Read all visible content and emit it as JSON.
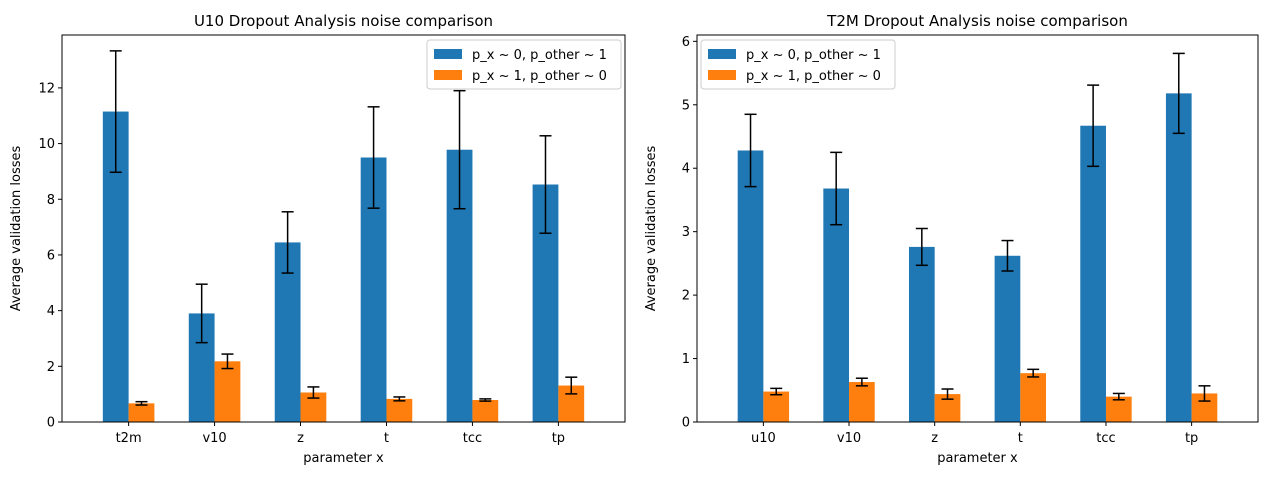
{
  "chart_data": [
    {
      "type": "bar",
      "title": "U10 Dropout Analysis noise comparison",
      "xlabel": "parameter x",
      "ylabel": "Average validation losses",
      "categories": [
        "t2m",
        "v10",
        "z",
        "t",
        "tcc",
        "tp"
      ],
      "ylim": [
        0,
        13.9
      ],
      "yticks": [
        0,
        2,
        4,
        6,
        8,
        10,
        12
      ],
      "legend_position": "upper right",
      "series": [
        {
          "name": "p_x ~ 0, p_other ~ 1",
          "color": "#1f77b4",
          "values": [
            11.15,
            3.9,
            6.45,
            9.5,
            9.78,
            8.53
          ],
          "errors": [
            2.18,
            1.05,
            1.1,
            1.82,
            2.12,
            1.75
          ]
        },
        {
          "name": "p_x ~ 1, p_other ~ 0",
          "color": "#ff7f0e",
          "values": [
            0.67,
            2.18,
            1.06,
            0.83,
            0.79,
            1.31
          ],
          "errors": [
            0.06,
            0.26,
            0.2,
            0.07,
            0.04,
            0.3
          ]
        }
      ]
    },
    {
      "type": "bar",
      "title": "T2M Dropout Analysis noise comparison",
      "xlabel": "parameter x",
      "ylabel": "Average validation losses",
      "categories": [
        "u10",
        "v10",
        "z",
        "t",
        "tcc",
        "tp"
      ],
      "ylim": [
        0,
        6.1
      ],
      "yticks": [
        0,
        1,
        2,
        3,
        4,
        5,
        6
      ],
      "legend_position": "upper left",
      "series": [
        {
          "name": "p_x ~ 0, p_other ~ 1",
          "color": "#1f77b4",
          "values": [
            4.28,
            3.68,
            2.76,
            2.62,
            4.67,
            5.18
          ],
          "errors": [
            0.57,
            0.57,
            0.29,
            0.24,
            0.64,
            0.63
          ]
        },
        {
          "name": "p_x ~ 1, p_other ~ 0",
          "color": "#ff7f0e",
          "values": [
            0.48,
            0.63,
            0.44,
            0.77,
            0.4,
            0.45
          ],
          "errors": [
            0.05,
            0.06,
            0.08,
            0.06,
            0.05,
            0.12
          ]
        }
      ]
    }
  ]
}
